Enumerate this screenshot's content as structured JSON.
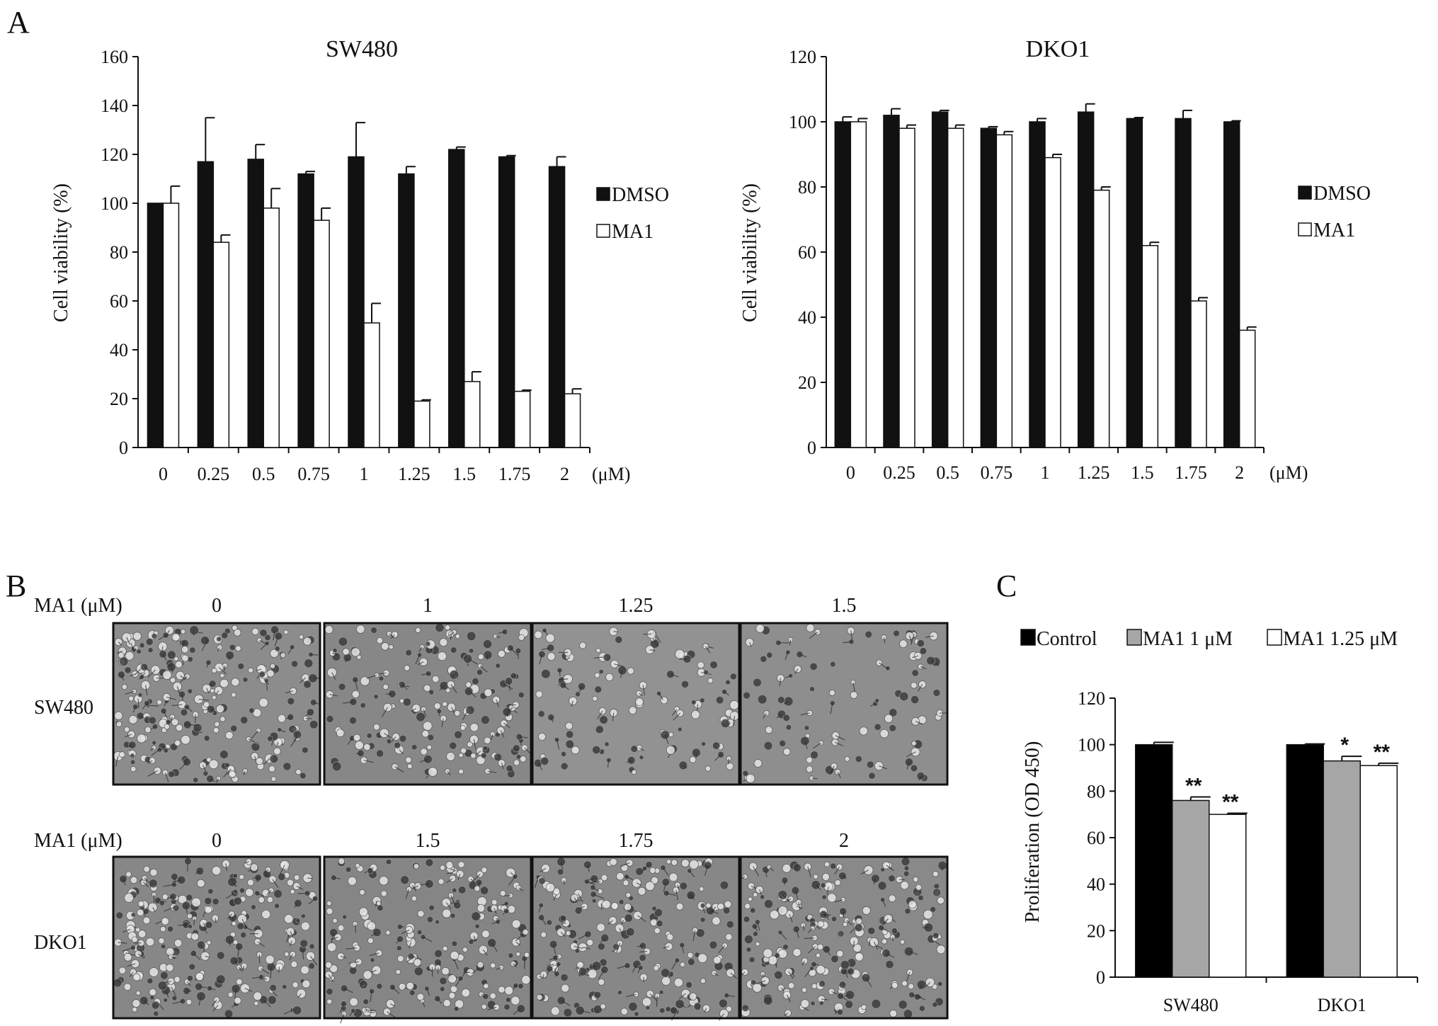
{
  "panels": {
    "A": "A",
    "B": "B",
    "C": "C"
  },
  "colors": {
    "dmso": "#111111",
    "ma1": "#ffffff",
    "ma1_1um": "#a6a6a6",
    "control": "#000000",
    "micrograph_base": "#8a8a8a"
  },
  "chart_data": [
    {
      "id": "sw480",
      "type": "bar",
      "title": "SW480",
      "ylabel": "Cell viability (%)",
      "xunit": "(μM)",
      "categories": [
        "0",
        "0.25",
        "0.5",
        "0.75",
        "1",
        "1.25",
        "1.5",
        "1.75",
        "2"
      ],
      "ylim": [
        0,
        160
      ],
      "yticks": [
        0,
        20,
        40,
        60,
        80,
        100,
        120,
        140,
        160
      ],
      "grid": false,
      "legend_position": "right",
      "series": [
        {
          "name": "DMSO",
          "fill": "#111111",
          "values": [
            100,
            117,
            118,
            112,
            119,
            112,
            122,
            119,
            115
          ],
          "errors": [
            0,
            18,
            6,
            1,
            14,
            3,
            1,
            0.5,
            4
          ]
        },
        {
          "name": "MA1",
          "fill": "#ffffff",
          "values": [
            100,
            84,
            98,
            93,
            51,
            19,
            27,
            23,
            22
          ],
          "errors": [
            7,
            3,
            8,
            5,
            8,
            0.5,
            4,
            0.5,
            2
          ]
        }
      ]
    },
    {
      "id": "dko1",
      "type": "bar",
      "title": "DKO1",
      "ylabel": "Cell viability (%)",
      "xunit": "(μM)",
      "categories": [
        "0",
        "0.25",
        "0.5",
        "0.75",
        "1",
        "1.25",
        "1.5",
        "1.75",
        "2"
      ],
      "ylim": [
        0,
        120
      ],
      "yticks": [
        0,
        20,
        40,
        60,
        80,
        100,
        120
      ],
      "grid": false,
      "legend_position": "right",
      "series": [
        {
          "name": "DMSO",
          "fill": "#111111",
          "values": [
            100,
            102,
            103,
            98,
            100,
            103,
            101,
            101,
            100
          ],
          "errors": [
            1.5,
            2,
            0.5,
            0.5,
            1,
            2.5,
            0.3,
            2.5,
            0.3
          ]
        },
        {
          "name": "MA1",
          "fill": "#ffffff",
          "values": [
            100,
            98,
            98,
            96,
            89,
            79,
            62,
            45,
            36
          ],
          "errors": [
            1,
            1,
            1,
            1,
            1,
            1,
            1,
            1,
            1
          ]
        }
      ]
    },
    {
      "id": "proliferation",
      "type": "bar",
      "title": "",
      "ylabel": "Proliferation (OD 450)",
      "categories": [
        "SW480",
        "DKO1"
      ],
      "ylim": [
        0,
        120
      ],
      "yticks": [
        0,
        20,
        40,
        60,
        80,
        100,
        120
      ],
      "grid": false,
      "legend_position": "top",
      "series": [
        {
          "name": "Control",
          "fill": "#000000",
          "values": [
            100,
            100
          ],
          "errors": [
            1,
            0.3
          ],
          "stars": [
            "",
            ""
          ]
        },
        {
          "name": "MA1 1 μM",
          "fill": "#a6a6a6",
          "values": [
            76,
            93
          ],
          "errors": [
            1.5,
            2
          ],
          "stars": [
            "**",
            "*"
          ]
        },
        {
          "name": "MA1 1.25 μM",
          "fill": "#ffffff",
          "values": [
            70,
            91
          ],
          "errors": [
            0.5,
            1
          ],
          "stars": [
            "**",
            "**"
          ]
        }
      ]
    }
  ],
  "micrographs": {
    "rows": [
      {
        "cell_line": "SW480",
        "header": "MA1 (μM)",
        "doses": [
          "0",
          "1",
          "1.25",
          "1.5"
        ],
        "density": [
          1.0,
          0.75,
          0.45,
          0.4
        ],
        "brightness": [
          0.55,
          0.5,
          0.62,
          0.58
        ]
      },
      {
        "cell_line": "DKO1",
        "header": "MA1 (μM)",
        "doses": [
          "0",
          "1.5",
          "1.75",
          "2"
        ],
        "density": [
          1.0,
          0.85,
          0.85,
          0.9
        ],
        "brightness": [
          0.5,
          0.48,
          0.5,
          0.52
        ]
      }
    ]
  }
}
